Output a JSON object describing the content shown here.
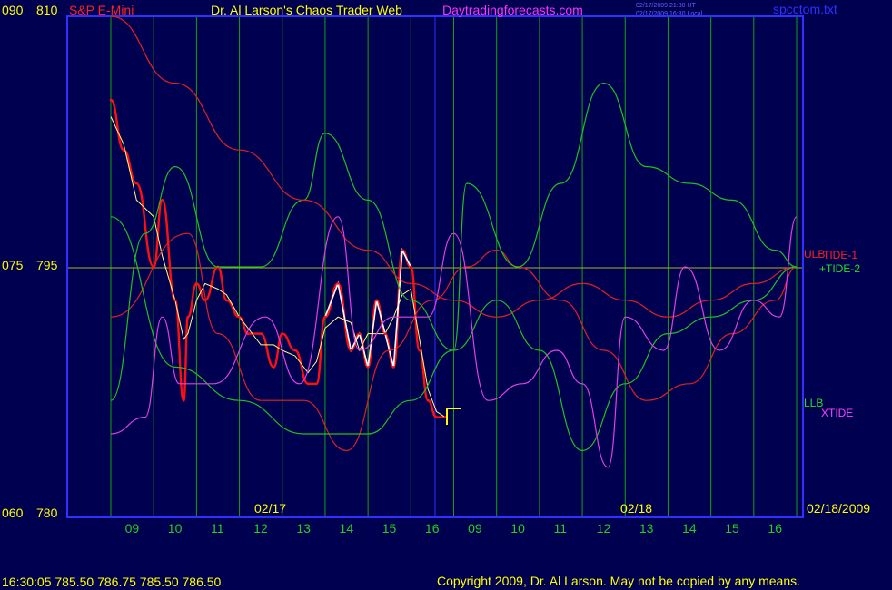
{
  "header": {
    "left_scale_top": "090",
    "left_price_top": "810",
    "symbol": "S&P E-Mini",
    "title": "Dr. Al Larson's Chaos Trader Web",
    "site": "Daytradingforecasts.com",
    "utc_time": "02/17/2009 21:30 UT",
    "local_time": "02/17/2009 16:30 Local",
    "file": "spcctom.txt"
  },
  "left_axis": {
    "mid_scale": "075",
    "mid_price": "795",
    "bottom_scale": "060",
    "bottom_price": "780"
  },
  "hour_ticks": [
    "09",
    "10",
    "11",
    "12",
    "13",
    "14",
    "15",
    "16",
    "09",
    "10",
    "11",
    "12",
    "13",
    "14",
    "15",
    "16"
  ],
  "date_labels": {
    "first": "02/17",
    "second": "02/18",
    "end": "02/18/2009"
  },
  "legend": {
    "ulb": "ULB",
    "tide1": "TIDE-1",
    "tide2": "+TIDE-2",
    "llb": "LLB",
    "xtide": "XTIDE"
  },
  "footer": {
    "quote": "16:30:05  785.50 786.75 785.50 786.50",
    "copyright": "Copyright 2009, Dr. Al Larson. May not be copied by any means."
  },
  "colors": {
    "background": "#000050",
    "price": "#ff1010",
    "price_recent": "#ffffff",
    "average": "#ffff80",
    "envelope": "#e02020",
    "tide": "#20c020",
    "xtide": "#e040e0",
    "slow_ma": "#2020ff",
    "grid": "#10a010",
    "axis": "#3030ff",
    "accent_yellow": "#ffff00"
  },
  "chart_data": {
    "type": "line",
    "title": "S&P E-Mini",
    "ylim": [
      780,
      810
    ],
    "x_range_hours": [
      0,
      16
    ],
    "xtide_ylim": [
      60,
      90
    ],
    "series": [
      {
        "name": "price",
        "x": [
          0.0,
          0.3,
          0.6,
          1.0,
          1.2,
          1.5,
          1.7,
          1.8,
          2.0,
          2.2,
          2.5,
          2.7,
          3.0,
          3.2,
          3.5,
          3.8,
          4.0,
          4.3,
          4.6,
          4.8,
          5.0,
          5.3,
          5.6,
          5.8,
          6.0,
          6.2,
          6.4,
          6.6,
          6.8,
          7.0,
          7.2,
          7.4,
          7.6,
          7.8
        ],
        "y": [
          805,
          802,
          800,
          795,
          799,
          793,
          787,
          792,
          794,
          793,
          795,
          793,
          792,
          791,
          791,
          789,
          791,
          790,
          788,
          788,
          792,
          794,
          790,
          791,
          789,
          793,
          791,
          789,
          796,
          795,
          790,
          787,
          786,
          786
        ]
      },
      {
        "name": "TIDE-1",
        "x": [
          0.0,
          1.8,
          2.5,
          3.5,
          4.5,
          5.5,
          6.5,
          7.5,
          8.3,
          9.0,
          9.5,
          10.5,
          11.5,
          12.5,
          13.5,
          14.5,
          15.5,
          16.0
        ],
        "y": [
          792,
          797,
          791,
          787,
          787,
          784,
          790,
          793,
          795,
          796,
          795,
          793,
          790,
          787,
          788,
          791,
          793,
          795
        ]
      },
      {
        "name": "TIDE-2",
        "x": [
          0.0,
          0.8,
          1.5,
          2.5,
          3.5,
          4.5,
          5.0,
          6.0,
          7.0,
          8.0,
          8.3,
          9.5,
          10.5,
          11.5,
          12.5,
          13.5,
          14.5,
          15.5,
          16.0
        ],
        "y": [
          787,
          797,
          801,
          795,
          795,
          799,
          803,
          799,
          793,
          790,
          800,
          795,
          800,
          806,
          801,
          800,
          799,
          796,
          795
        ]
      },
      {
        "name": "ULB",
        "x": [
          0.0,
          1.5,
          3.0,
          4.5,
          6.0,
          7.0,
          8.0,
          9.0,
          10.0,
          11.0,
          12.0,
          13.0,
          14.0,
          15.0,
          16.0
        ],
        "y": [
          810,
          806,
          802,
          799,
          796,
          794,
          793,
          792,
          793,
          794,
          793,
          792,
          793,
          794,
          795
        ]
      },
      {
        "name": "LLB",
        "x": [
          0.0,
          1.5,
          3.0,
          4.5,
          6.0,
          7.0,
          8.0,
          9.0,
          10.0,
          11.0,
          12.0,
          13.0,
          14.0,
          15.0,
          16.0
        ],
        "y": [
          798,
          789,
          787,
          785,
          785,
          787,
          790,
          793,
          790,
          784,
          788,
          791,
          792,
          793,
          795
        ]
      },
      {
        "name": "XTIDE",
        "x": [
          0.0,
          0.8,
          1.2,
          1.6,
          2.4,
          3.6,
          4.4,
          5.3,
          5.8,
          6.6,
          7.4,
          8.0,
          8.8,
          9.6,
          10.4,
          11.0,
          11.6,
          12.0,
          12.9,
          13.4,
          14.2,
          15.0,
          15.6,
          16.0
        ],
        "y": [
          65,
          66,
          72,
          68,
          68,
          72,
          68,
          78,
          70,
          72,
          72,
          77,
          67,
          68,
          70,
          68,
          63,
          72,
          70,
          75,
          70,
          73,
          72,
          78
        ]
      }
    ]
  }
}
